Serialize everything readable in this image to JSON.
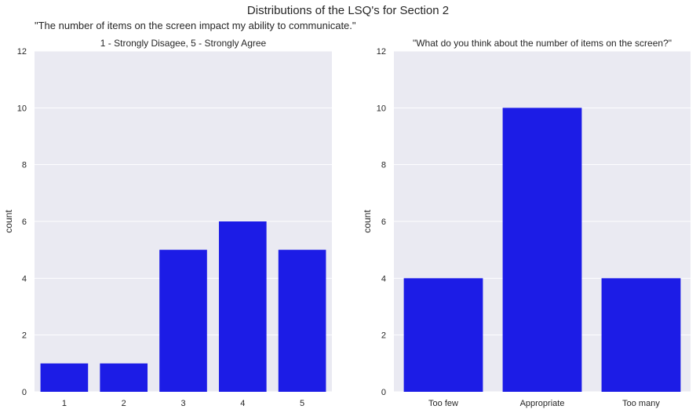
{
  "figure": {
    "suptitle": "Distributions of the LSQ's for Section 2",
    "left_subtitle": "\"The number of items on the screen impact my ability to communicate.\""
  },
  "colors": {
    "bar": "#1c1ce6",
    "plot_background": "#eaeaf2",
    "grid": "#ffffff",
    "text": "#262626"
  },
  "chart_data": [
    {
      "type": "bar",
      "title": "1 - Strongly Disagee, 5 - Strongly Agree",
      "xlabel": "",
      "ylabel": "count",
      "categories": [
        "1",
        "2",
        "3",
        "4",
        "5"
      ],
      "values": [
        1,
        1,
        5,
        6,
        5
      ],
      "ylim": [
        0,
        12
      ],
      "yticks": [
        0,
        2,
        4,
        6,
        8,
        10,
        12
      ],
      "grid": true,
      "legend": "none"
    },
    {
      "type": "bar",
      "title": "\"What do you think about the number of items on the screen?\"",
      "xlabel": "",
      "ylabel": "count",
      "categories": [
        "Too few",
        "Appropriate",
        "Too many"
      ],
      "values": [
        4,
        10,
        4
      ],
      "ylim": [
        0,
        12
      ],
      "yticks": [
        0,
        2,
        4,
        6,
        8,
        10,
        12
      ],
      "grid": true,
      "legend": "none"
    }
  ]
}
